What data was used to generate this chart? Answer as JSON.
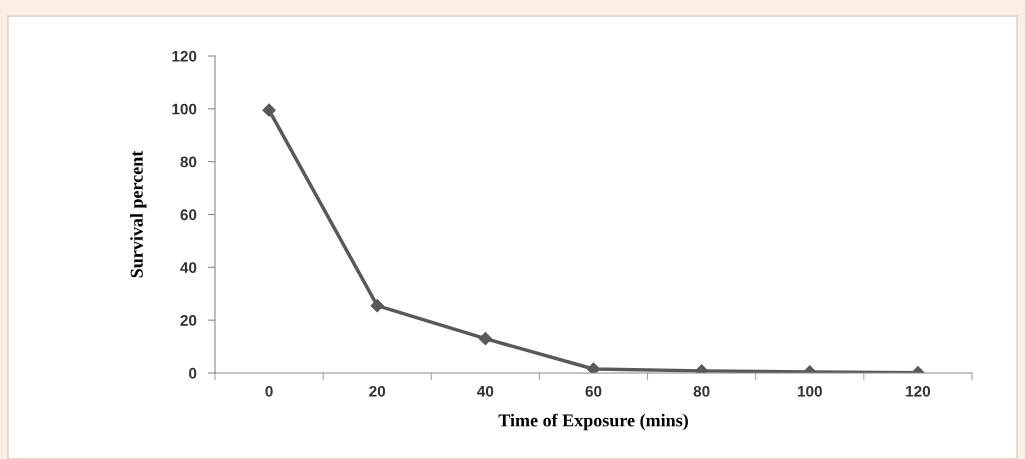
{
  "chart_data": {
    "type": "line",
    "xlabel": "Time of Exposure (mins)",
    "ylabel": "Survival percent",
    "categories": [
      "0",
      "20",
      "40",
      "60",
      "80",
      "100",
      "120"
    ],
    "series": [
      {
        "color": "#595959",
        "values": [
          99.5,
          25.5,
          13,
          1.5,
          0.8,
          0.4,
          0.1
        ]
      }
    ],
    "ylim": [
      0,
      120
    ],
    "yticks": [
      0,
      20,
      40,
      60,
      80,
      100,
      120
    ],
    "grid": false,
    "legend": false,
    "marker": "diamond",
    "line_style": "solid"
  }
}
